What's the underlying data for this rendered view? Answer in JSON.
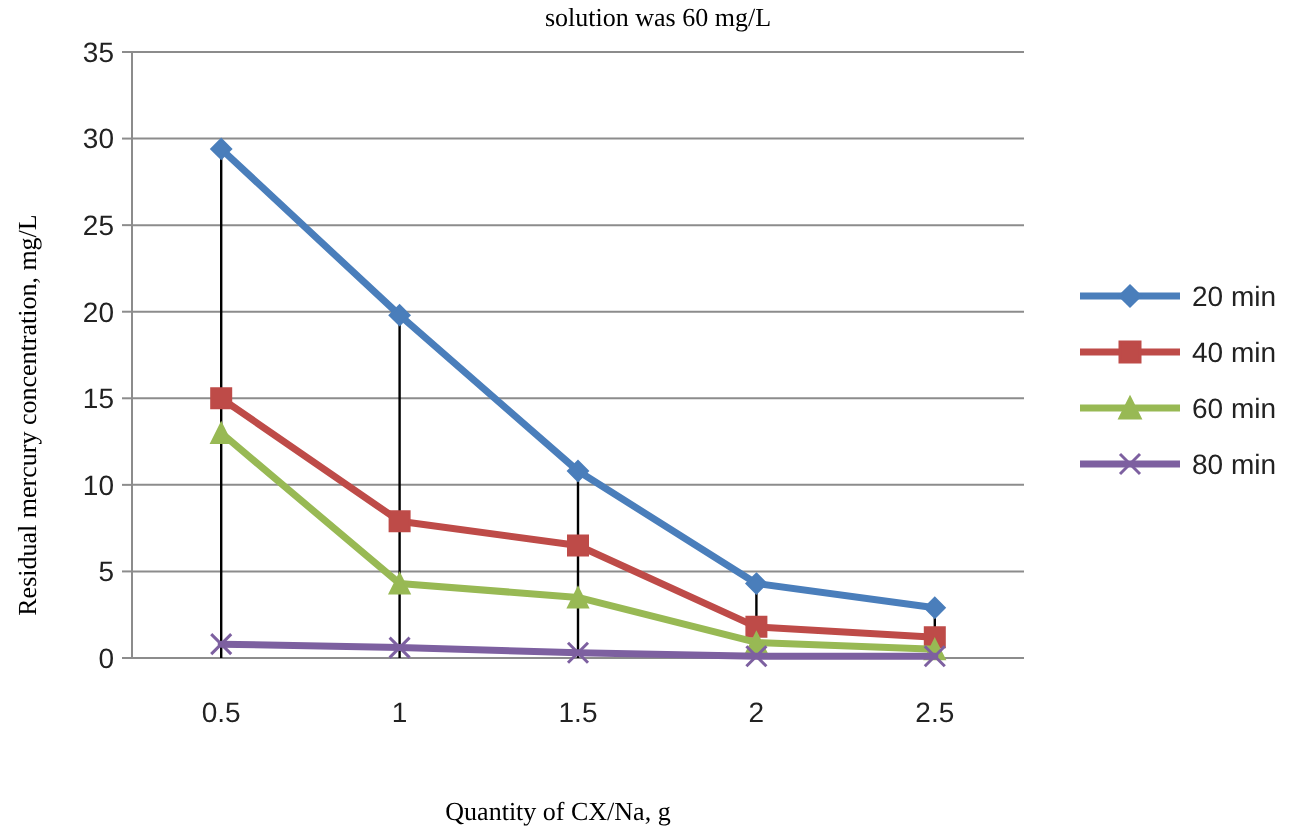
{
  "chart_data": {
    "type": "line",
    "title": "solution was 60 mg/L",
    "xlabel": "Quantity  of  CX/Na, g",
    "ylabel": "Residual mercury concentration, mg/L",
    "categories": [
      "0.5",
      "1",
      "1.5",
      "2",
      "2.5"
    ],
    "series": [
      {
        "name": "20 min",
        "color": "#4a7ebb",
        "marker": "diamond",
        "values": [
          29.4,
          19.8,
          10.8,
          4.3,
          2.9
        ]
      },
      {
        "name": "40 min",
        "color": "#be4b48",
        "marker": "square",
        "values": [
          15,
          7.9,
          6.5,
          1.8,
          1.2
        ]
      },
      {
        "name": "60 min",
        "color": "#98b954",
        "marker": "triangle",
        "values": [
          13,
          4.3,
          3.5,
          0.9,
          0.5
        ]
      },
      {
        "name": "80 min",
        "color": "#7d60a0",
        "marker": "cross",
        "values": [
          0.8,
          0.6,
          0.3,
          0.1,
          0.1
        ]
      }
    ],
    "ref_lines": [
      {
        "axis": "x",
        "value": "0.5",
        "color": "#000000"
      },
      {
        "axis": "x",
        "value": "1",
        "color": "#000000"
      },
      {
        "axis": "x",
        "value": "1.5",
        "color": "#000000"
      },
      {
        "axis": "x",
        "value": "2",
        "color": "#000000"
      },
      {
        "axis": "x",
        "value": "2.5",
        "color": "#000000"
      }
    ],
    "ylim": [
      0,
      35
    ],
    "yticks": [
      0,
      5,
      10,
      15,
      20,
      25,
      30,
      35
    ],
    "grid": "y",
    "legend": "right"
  }
}
